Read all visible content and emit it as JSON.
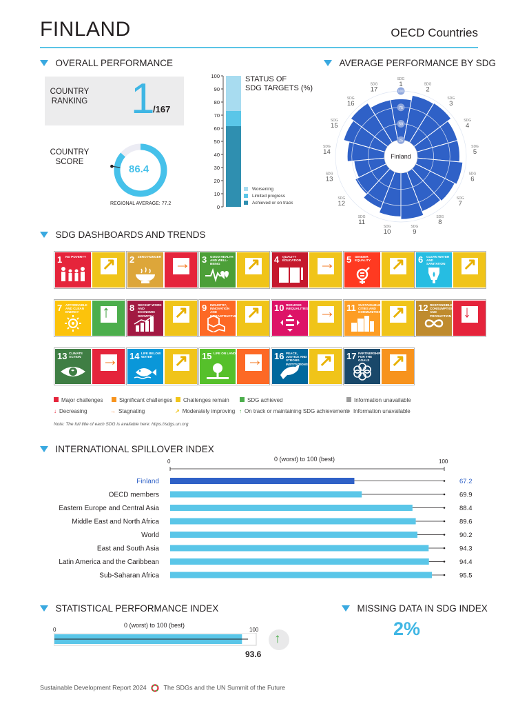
{
  "header": {
    "country": "FINLAND",
    "group": "OECD Countries"
  },
  "overall": {
    "title": "OVERALL PERFORMANCE",
    "ranking_label": "COUNTRY\nRANKING",
    "rank": "1",
    "rank_total": "/167",
    "score_label": "COUNTRY\nSCORE",
    "score": "86.4",
    "score_value": 86.4,
    "regional_avg_label": "REGIONAL AVERAGE: 77.2",
    "regional_avg_value": 77.2
  },
  "status_chart": {
    "title_line1": "STATUS OF",
    "title_line2": "SDG TARGETS (%)",
    "ticks": [
      "100",
      "90",
      "80",
      "70",
      "60",
      "50",
      "40",
      "30",
      "20",
      "10",
      "0"
    ],
    "legend": [
      "Worsening",
      "Limited progress",
      "Achieved or on track"
    ],
    "colors": [
      "#a8dcf0",
      "#5ac6e8",
      "#2f8fb0"
    ]
  },
  "radar": {
    "title": "AVERAGE PERFORMANCE BY SDG",
    "center_label": "Finland",
    "prefix": "SDG",
    "sdg_numbers": [
      "1",
      "2",
      "3",
      "4",
      "5",
      "6",
      "7",
      "8",
      "9",
      "10",
      "11",
      "12",
      "13",
      "14",
      "15",
      "16",
      "17"
    ],
    "ring_labels": [
      "25",
      "50",
      "75",
      "100"
    ],
    "color": "#2f61c7"
  },
  "dashboard": {
    "title": "SDG DASHBOARDS AND TRENDS",
    "tiles": [
      {
        "num": "1",
        "name": "NO POVERTY",
        "color": "#e5243b",
        "icon": "family-icon",
        "status": "#f0c419",
        "status_name": "yellow",
        "trend": "moderately-improving"
      },
      {
        "num": "2",
        "name": "ZERO HUNGER",
        "color": "#dda63a",
        "icon": "bowl-icon",
        "status": "#e5243b",
        "status_name": "red",
        "trend": "stagnating"
      },
      {
        "num": "3",
        "name": "GOOD HEALTH AND WELL-BEING",
        "color": "#4c9f38",
        "icon": "heartbeat-icon",
        "status": "#f0c419",
        "status_name": "yellow",
        "trend": "moderately-improving"
      },
      {
        "num": "4",
        "name": "QUALITY EDUCATION",
        "color": "#c5192d",
        "icon": "book-icon",
        "status": "#f0c419",
        "status_name": "yellow",
        "trend": "stagnating"
      },
      {
        "num": "5",
        "name": "GENDER EQUALITY",
        "color": "#ff3a21",
        "icon": "gender-icon",
        "status": "#f0c419",
        "status_name": "yellow",
        "trend": "moderately-improving"
      },
      {
        "num": "6",
        "name": "CLEAN WATER AND SANITATION",
        "color": "#26bde2",
        "icon": "water-icon",
        "status": "#f0c419",
        "status_name": "yellow",
        "trend": "moderately-improving"
      },
      {
        "num": "7",
        "name": "AFFORDABLE AND CLEAN ENERGY",
        "color": "#fcc30b",
        "icon": "sun-icon",
        "status": "#4cae4c",
        "status_name": "green",
        "trend": "on-track"
      },
      {
        "num": "8",
        "name": "DECENT WORK AND ECONOMIC GROWTH",
        "color": "#a21942",
        "icon": "growth-chart-icon",
        "status": "#f0c419",
        "status_name": "yellow",
        "trend": "moderately-improving"
      },
      {
        "num": "9",
        "name": "INDUSTRY, INNOVATION AND INFRASTRUCTURE",
        "color": "#fd6925",
        "icon": "cubes-icon",
        "status": "#f0c419",
        "status_name": "yellow",
        "trend": "moderately-improving"
      },
      {
        "num": "10",
        "name": "REDUCED INEQUALITIES",
        "color": "#dd1367",
        "icon": "equality-icon",
        "status": "#f0c419",
        "status_name": "yellow",
        "trend": "stagnating"
      },
      {
        "num": "11",
        "name": "SUSTAINABLE CITIES AND COMMUNITIES",
        "color": "#fd9d24",
        "icon": "city-icon",
        "status": "#f0c419",
        "status_name": "yellow",
        "trend": "moderately-improving"
      },
      {
        "num": "12",
        "name": "RESPONSIBLE CONSUMPTION AND PRODUCTION",
        "color": "#bf8b2e",
        "icon": "infinity-icon",
        "status": "#e5243b",
        "status_name": "red",
        "trend": "decreasing"
      },
      {
        "num": "13",
        "name": "CLIMATE ACTION",
        "color": "#3f7e44",
        "icon": "eye-globe-icon",
        "status": "#e5243b",
        "status_name": "red",
        "trend": "stagnating"
      },
      {
        "num": "14",
        "name": "LIFE BELOW WATER",
        "color": "#0a97d9",
        "icon": "fish-icon",
        "status": "#f0c419",
        "status_name": "yellow",
        "trend": "moderately-improving"
      },
      {
        "num": "15",
        "name": "LIFE ON LAND",
        "color": "#56c02b",
        "icon": "tree-icon",
        "status": "#fd6925",
        "status_name": "orange",
        "trend": "stagnating"
      },
      {
        "num": "16",
        "name": "PEACE, JUSTICE AND STRONG INSTITUTIONS",
        "color": "#00689d",
        "icon": "dove-icon",
        "status": "#f0c419",
        "status_name": "yellow",
        "trend": "moderately-improving"
      },
      {
        "num": "17",
        "name": "PARTNERSHIPS FOR THE GOALS",
        "color": "#19486a",
        "icon": "flower-icon",
        "status": "#f7931d",
        "status_name": "orange",
        "trend": "moderately-improving"
      }
    ],
    "legend": {
      "major": "Major challenges",
      "significant": "Significant challenges",
      "remain": "Challenges remain",
      "achieved": "SDG achieved",
      "info1": "Information unavailable",
      "decreasing": "Decreasing",
      "stagnating": "Stagnating",
      "moderate": "Moderately improving",
      "ontrack": "On track or maintaining SDG achievement",
      "info2": "Information unavailable",
      "note": "Note: The full title of each SDG is available here: https://sdgs.un.org"
    }
  },
  "spillover": {
    "title": "INTERNATIONAL SPILLOVER INDEX",
    "axis_min": "0",
    "axis_max": "100",
    "axis_label": "0 (worst) to 100 (best)",
    "rows": [
      {
        "name": "Finland",
        "value": 67.2,
        "label": "67.2",
        "highlight": true
      },
      {
        "name": "OECD members",
        "value": 69.9,
        "label": "69.9",
        "highlight": false
      },
      {
        "name": "Eastern Europe and Central Asia",
        "value": 88.4,
        "label": "88.4",
        "highlight": false
      },
      {
        "name": "Middle East and North Africa",
        "value": 89.6,
        "label": "89.6",
        "highlight": false
      },
      {
        "name": "World",
        "value": 90.2,
        "label": "90.2",
        "highlight": false
      },
      {
        "name": "East and South Asia",
        "value": 94.3,
        "label": "94.3",
        "highlight": false
      },
      {
        "name": "Latin America and the Caribbean",
        "value": 94.4,
        "label": "94.4",
        "highlight": false
      },
      {
        "name": "Sub-Saharan Africa",
        "value": 95.5,
        "label": "95.5",
        "highlight": false
      }
    ]
  },
  "spi": {
    "title": "STATISTICAL PERFORMANCE INDEX",
    "axis_min": "0",
    "axis_max": "100",
    "axis_label": "0 (worst) to 100 (best)",
    "value": 93.6,
    "label": "93.6"
  },
  "missing": {
    "title": "MISSING DATA IN SDG INDEX",
    "value": "2%"
  },
  "footer": {
    "left": "Sustainable Development Report 2024",
    "right": "The SDGs and the UN Summit of the Future"
  }
}
